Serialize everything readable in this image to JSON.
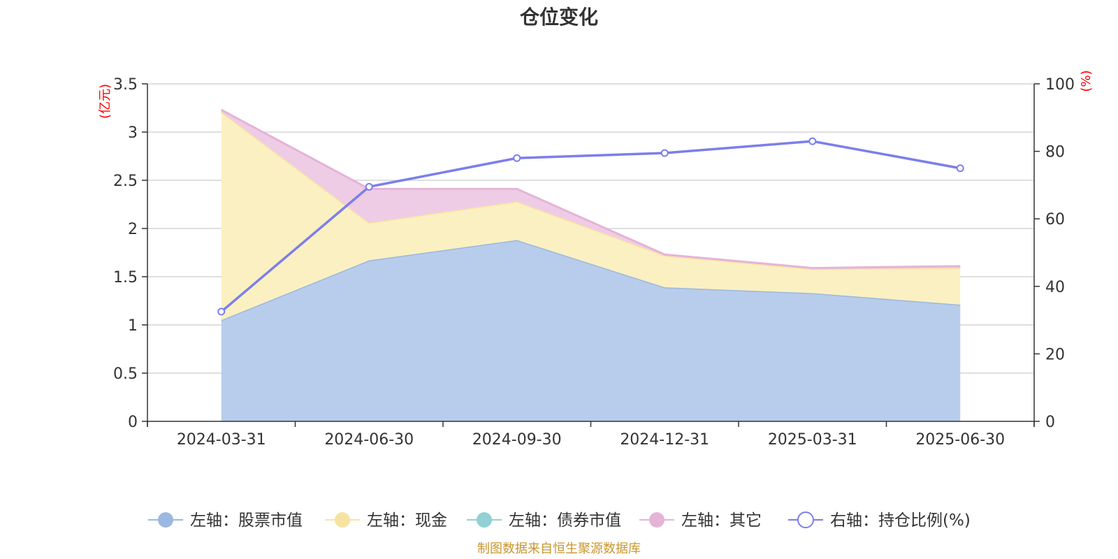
{
  "chart_data": {
    "type": "area",
    "title": "仓位变化",
    "categories": [
      "2024-03-31",
      "2024-06-30",
      "2024-09-30",
      "2024-12-31",
      "2025-03-31",
      "2025-06-30"
    ],
    "left_axis": {
      "unit": "(亿元)",
      "ylim": [
        0,
        3.5
      ],
      "ticks": [
        "0",
        "0.5",
        "1",
        "1.5",
        "2",
        "2.5",
        "3",
        "3.5"
      ]
    },
    "right_axis": {
      "unit": "(%)",
      "ylim": [
        0,
        100
      ],
      "ticks": [
        "0",
        "20",
        "40",
        "60",
        "80",
        "100"
      ]
    },
    "series": [
      {
        "name": "左轴：股票市值",
        "axis": "left",
        "stack": true,
        "values": [
          1.05,
          1.67,
          1.88,
          1.39,
          1.33,
          1.21
        ],
        "color": "#9bb8e0",
        "fill": "#b8cdec"
      },
      {
        "name": "左轴：现金",
        "axis": "left",
        "stack": true,
        "values": [
          2.16,
          0.39,
          0.4,
          0.33,
          0.25,
          0.38
        ],
        "color": "#f7e3a0",
        "fill": "#fbf0c2"
      },
      {
        "name": "左轴：债券市值",
        "axis": "left",
        "stack": true,
        "values": [
          0,
          0,
          0,
          0,
          0,
          0
        ],
        "color": "#8fd1d4",
        "fill": "#bfe6e8"
      },
      {
        "name": "左轴：其它",
        "axis": "left",
        "stack": true,
        "values": [
          0.02,
          0.35,
          0.13,
          0.01,
          0.01,
          0.02
        ],
        "color": "#e5b3d8",
        "fill": "#efcce5"
      },
      {
        "name": "右轴：持仓比例(%)",
        "axis": "right",
        "type": "line",
        "values": [
          32.5,
          69.5,
          78.0,
          79.5,
          83.0,
          75.0
        ],
        "color": "#7b7fea"
      }
    ],
    "grid": true,
    "legend_position": "bottom",
    "source": "制图数据来自恒生聚源数据库"
  }
}
